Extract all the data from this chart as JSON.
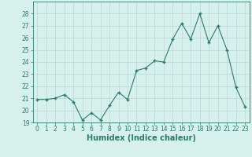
{
  "title": "",
  "xlabel": "Humidex (Indice chaleur)",
  "ylabel": "",
  "x": [
    0,
    1,
    2,
    3,
    4,
    5,
    6,
    7,
    8,
    9,
    10,
    11,
    12,
    13,
    14,
    15,
    16,
    17,
    18,
    19,
    20,
    21,
    22,
    23
  ],
  "y": [
    20.9,
    20.9,
    21.0,
    21.3,
    20.7,
    19.2,
    19.8,
    19.2,
    20.4,
    21.5,
    20.9,
    23.3,
    23.5,
    24.1,
    24.0,
    25.9,
    27.2,
    25.9,
    28.0,
    25.6,
    27.0,
    25.0,
    21.9,
    20.3
  ],
  "line_color": "#2d7a68",
  "marker": "+",
  "bg_color": "#d6f0ec",
  "grid_color": "#b8d8d4",
  "ylim": [
    19,
    29
  ],
  "xlim": [
    -0.5,
    23.5
  ],
  "yticks": [
    19,
    20,
    21,
    22,
    23,
    24,
    25,
    26,
    27,
    28
  ],
  "xticks": [
    0,
    1,
    2,
    3,
    4,
    5,
    6,
    7,
    8,
    9,
    10,
    11,
    12,
    13,
    14,
    15,
    16,
    17,
    18,
    19,
    20,
    21,
    22,
    23
  ],
  "tick_label_fontsize": 5.5,
  "xlabel_fontsize": 7.0,
  "tick_color": "#2d7a68",
  "label_color": "#2d7a68"
}
